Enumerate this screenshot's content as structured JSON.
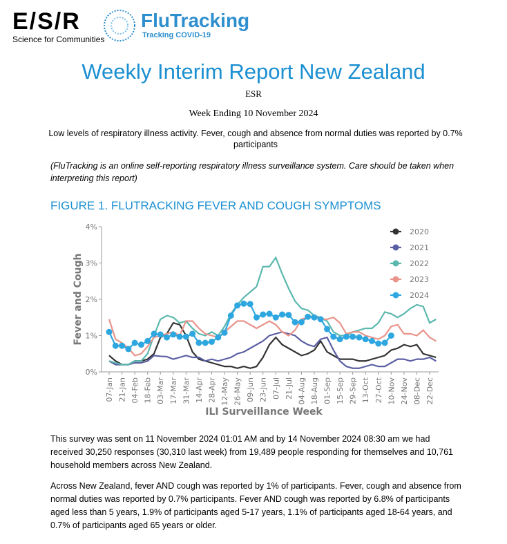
{
  "header": {
    "logo": "E/S/R",
    "tagline": "Science for Communities",
    "brand": "FluTracking",
    "brand_sub": "Tracking COVID-19"
  },
  "title": "Weekly Interim Report New Zealand",
  "org": "ESR",
  "week": "Week Ending 10 November 2024",
  "summary": "Low levels of respiratory illness activity. Fever, cough and absence from normal duties was reported by 0.7% participants",
  "note": "(FluTracking is an online self-reporting respiratory illness surveillance system. Care should be taken when interpreting this report)",
  "figure_title": "FIGURE 1. FLUTRACKING FEVER AND COUGH SYMPTOMS",
  "chart_data": {
    "type": "line",
    "ylabel": "Fever and Cough",
    "xlabel": "ILI Surveillance Week",
    "legend": "upper right",
    "grid": false,
    "ylim": [
      0,
      4
    ],
    "yticks": [
      {
        "value": 0,
        "label": "0%"
      },
      {
        "value": 1,
        "label": "1%"
      },
      {
        "value": 2,
        "label": "2%"
      },
      {
        "value": 3,
        "label": "3%"
      },
      {
        "value": 4,
        "label": "4%"
      }
    ],
    "categories": [
      "07-Jan",
      null,
      "21-Jan",
      null,
      "04-Feb",
      null,
      "18-Feb",
      null,
      "03-Mar",
      null,
      "17-Mar",
      null,
      "31-Mar",
      null,
      "14-Apr",
      null,
      "28-Apr",
      null,
      "12-May",
      null,
      "26-May",
      null,
      "09-Jun",
      null,
      "23-Jun",
      null,
      "07-Jul",
      null,
      "21-Jul",
      null,
      "04-Aug",
      null,
      "18-Aug",
      null,
      "01-Sep",
      null,
      "15-Sep",
      null,
      "29-Sep",
      null,
      "13-Oct",
      null,
      "27-Oct",
      null,
      "10-Nov",
      null,
      "24-Nov",
      null,
      "08-Dec",
      null,
      "22-Dec",
      null
    ],
    "series": [
      {
        "name": "2020",
        "color": "#333333",
        "markers": false,
        "values": [
          0.45,
          0.3,
          0.2,
          0.2,
          0.3,
          0.3,
          0.35,
          0.5,
          0.95,
          1.05,
          1.35,
          1.3,
          1.0,
          0.55,
          0.35,
          0.3,
          0.25,
          0.2,
          0.15,
          0.15,
          0.1,
          0.15,
          0.1,
          0.15,
          0.4,
          0.75,
          0.95,
          0.75,
          0.65,
          0.55,
          0.45,
          0.5,
          0.6,
          0.85,
          0.55,
          0.45,
          0.35,
          0.35,
          0.35,
          0.3,
          0.3,
          0.35,
          0.4,
          0.45,
          0.6,
          0.65,
          0.75,
          0.7,
          0.75,
          0.5,
          0.45,
          0.4
        ]
      },
      {
        "name": "2021",
        "color": "#5b5fa3",
        "markers": false,
        "values": [
          0.3,
          0.2,
          0.2,
          0.2,
          0.25,
          0.25,
          0.3,
          0.45,
          0.43,
          0.42,
          0.35,
          0.4,
          0.45,
          0.4,
          0.4,
          0.3,
          0.35,
          0.3,
          0.35,
          0.4,
          0.5,
          0.55,
          0.65,
          0.75,
          0.85,
          1.0,
          1.05,
          1.1,
          1.05,
          1.0,
          0.85,
          0.75,
          0.7,
          0.9,
          0.95,
          0.6,
          0.3,
          0.15,
          0.1,
          0.1,
          0.15,
          0.2,
          0.15,
          0.15,
          0.25,
          0.35,
          0.35,
          0.3,
          0.35,
          0.35,
          0.4,
          0.3
        ]
      },
      {
        "name": "2022",
        "color": "#5bb8ae",
        "markers": false,
        "values": [
          0.3,
          0.25,
          0.2,
          0.2,
          0.3,
          0.3,
          0.5,
          1.0,
          1.45,
          1.55,
          1.5,
          1.35,
          1.4,
          1.2,
          1.05,
          1.0,
          1.1,
          1.0,
          1.25,
          1.6,
          1.85,
          2.05,
          2.2,
          2.35,
          2.9,
          2.9,
          3.15,
          2.7,
          2.3,
          1.95,
          1.75,
          1.7,
          1.55,
          1.5,
          1.4,
          1.1,
          1.0,
          1.0,
          1.1,
          1.15,
          1.2,
          1.2,
          1.35,
          1.65,
          1.6,
          1.5,
          1.6,
          1.75,
          1.85,
          1.8,
          1.35,
          1.45
        ]
      },
      {
        "name": "2023",
        "color": "#e8948a",
        "markers": false,
        "values": [
          1.45,
          0.9,
          0.8,
          0.65,
          0.45,
          0.5,
          0.7,
          0.95,
          1.0,
          1.05,
          1.1,
          1.0,
          1.4,
          1.4,
          1.2,
          1.05,
          1.0,
          0.95,
          1.1,
          1.25,
          1.4,
          1.4,
          1.3,
          1.2,
          1.3,
          1.4,
          1.3,
          1.1,
          1.0,
          1.15,
          1.45,
          1.5,
          1.55,
          1.45,
          1.45,
          1.5,
          1.35,
          1.05,
          1.1,
          1.1,
          1.0,
          0.95,
          0.9,
          1.0,
          1.25,
          1.3,
          1.05,
          1.05,
          1.0,
          1.15,
          0.95,
          0.85
        ]
      },
      {
        "name": "2024",
        "color": "#2ea7e0",
        "markers": true,
        "values": [
          1.1,
          0.72,
          0.72,
          0.63,
          0.8,
          0.75,
          0.85,
          1.05,
          1.03,
          0.95,
          1.03,
          0.97,
          0.97,
          1.05,
          0.8,
          0.8,
          0.83,
          0.95,
          1.08,
          1.55,
          1.83,
          1.88,
          1.87,
          1.5,
          1.58,
          1.6,
          1.5,
          1.58,
          1.57,
          1.37,
          1.37,
          1.52,
          1.5,
          1.45,
          1.18,
          0.97,
          0.9,
          0.97,
          0.97,
          0.95,
          0.9,
          0.85,
          0.78,
          0.8,
          1.0,
          null,
          null,
          null,
          null,
          null,
          null,
          null
        ]
      }
    ]
  },
  "paragraphs": [
    "This survey was sent on 11 November 2024 01:01 AM and by 14 November 2024 08:30 am we had received 30,250 responses (30,310 last week) from 19,489 people responding for themselves and 10,761 household members across New Zealand.",
    "Across New Zealand, fever AND cough was reported by 1% of participants. Fever, cough and absence from normal duties was reported by 0.7% participants. Fever AND cough was reported by 6.8% of participants aged less than 5 years, 1.9% of participants aged 5-17 years, 1.1% of participants aged 18-64 years, and 0.7% of participants aged 65 years or older."
  ]
}
